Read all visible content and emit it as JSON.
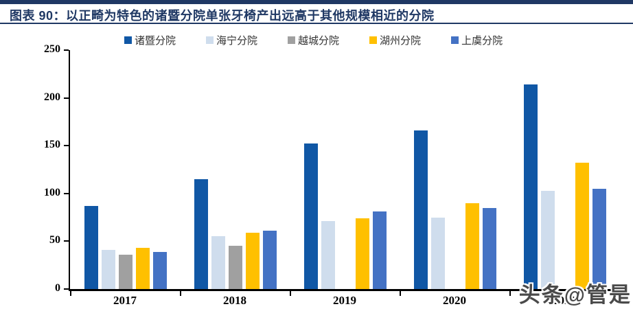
{
  "header": {
    "title": "图表 90：以正畸为特色的诸暨分院单张牙椅产出远高于其他规模相近的分院"
  },
  "watermark": {
    "text": "头条@管是"
  },
  "colors": {
    "accent_navy": "#1F3864",
    "axis": "#000000",
    "legend_text": "#333333"
  },
  "chart_data": {
    "type": "bar",
    "figure_label": "图表 90",
    "title": "以正畸为特色的诸暨分院单张牙椅产出远高于其他规模相近的分院",
    "categories": [
      "2017",
      "2018",
      "2019",
      "2020",
      "2021"
    ],
    "series": [
      {
        "name": "诸暨分院",
        "color": "#1057A5",
        "values": [
          87,
          115,
          152,
          166,
          214
        ]
      },
      {
        "name": "海宁分院",
        "color": "#CFDDED",
        "values": [
          41,
          55,
          71,
          75,
          103
        ]
      },
      {
        "name": "越城分院",
        "color": "#A0A0A0",
        "values": [
          36,
          45,
          null,
          null,
          null
        ]
      },
      {
        "name": "湖州分院",
        "color": "#FFC000",
        "values": [
          43,
          59,
          74,
          90,
          132
        ]
      },
      {
        "name": "上虞分院",
        "color": "#4472C4",
        "values": [
          39,
          61,
          81,
          85,
          105
        ]
      }
    ],
    "ylim": [
      0,
      250
    ],
    "yticks": [
      0,
      50,
      100,
      150,
      200,
      250
    ],
    "xlabel": "",
    "ylabel": "",
    "grid": false,
    "legend_position": "top"
  }
}
